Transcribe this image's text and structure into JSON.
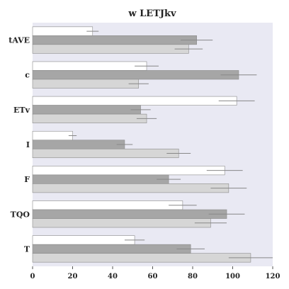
{
  "chart_data": {
    "type": "bar",
    "orientation": "horizontal",
    "title": "w LETJkv",
    "xlabel": "",
    "ylabel": "",
    "categories": [
      "tAVE",
      "c",
      "ETv",
      "I",
      "F",
      "TQO",
      "T"
    ],
    "xlim": [
      0,
      120
    ],
    "xticks": [
      0,
      20,
      40,
      60,
      80,
      100,
      120
    ],
    "grid": false,
    "legend": "none",
    "series": [
      {
        "color": "#ffffff",
        "values": [
          30,
          57,
          102,
          20,
          96,
          75,
          51
        ],
        "errors": [
          3,
          6,
          9,
          2,
          9,
          7,
          5
        ]
      },
      {
        "color": "#a6a6a6",
        "values": [
          82,
          103,
          54,
          46,
          68,
          97,
          79
        ],
        "errors": [
          8,
          9,
          5,
          4,
          6,
          9,
          7
        ]
      },
      {
        "color": "#d6d6d6",
        "values": [
          78,
          53,
          57,
          73,
          98,
          89,
          109
        ],
        "errors": [
          7,
          5,
          5,
          6,
          9,
          8,
          11
        ]
      }
    ]
  }
}
